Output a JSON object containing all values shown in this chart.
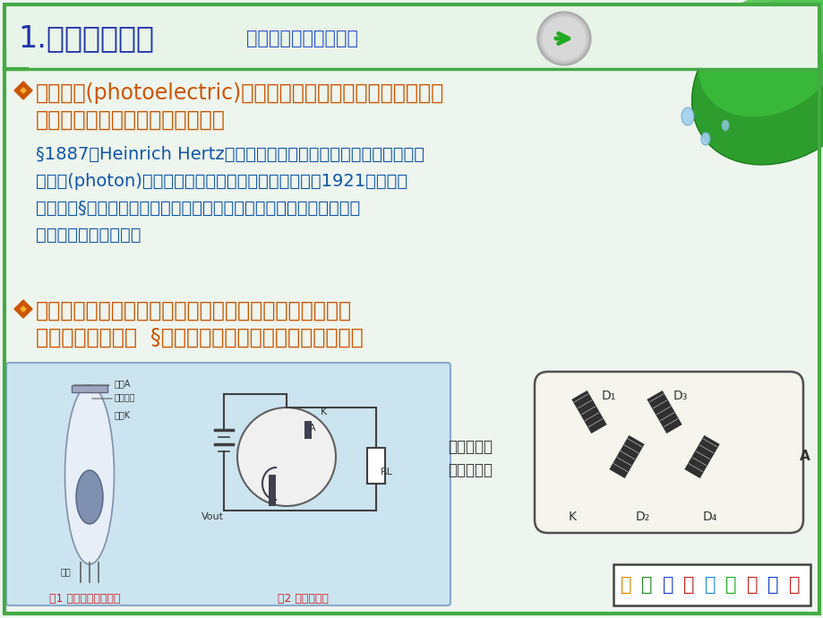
{
  "bg_color": "#eef5ee",
  "title_main": "1.光电效应简介",
  "title_sub": "光电效应和外光电效应",
  "title_main_color": "#2233aa",
  "title_sub_color": "#3355cc",
  "border_color": "#44aa44",
  "bullet1_line1": "光电效应(photoelectric)：物体吸收了光能后转换为该物体中",
  "bullet1_line2": "某些电子的能量而产生的电效应。",
  "bullet1_color": "#cc5500",
  "sub_text_line1": "§1887年Heinrich Hertz在实验中发现了光电效应，爱因斯坦因采用",
  "sub_text_line2": "光量子(photon)的概念成功的解释了光电效应而获得了1921年诺贝尔",
  "sub_text_line3": "物理奖。§根据电子吸收光子能量后的不同行为，光电效应可分为外光",
  "sub_text_line4": "电效应和内光电效应。",
  "sub_text_color": "#1155aa",
  "bullet2_line1": "外光电效应：在光线作用下，物体内的电子逸出物体表面",
  "bullet2_line2": "向外发射的现象。  §其主要应用有光电管和光电倍增管。",
  "bullet2_color": "#cc5500",
  "diagram_caption1": "图1 光电管结构示意图",
  "diagram_caption2": "图2 光电管电路",
  "multiplier_label": "光电倍增管\n工作原理图",
  "inst_text": "化学与环境科学学院",
  "diagram_box_color": "#cce4f0",
  "diagram_box_border": "#88aacc"
}
